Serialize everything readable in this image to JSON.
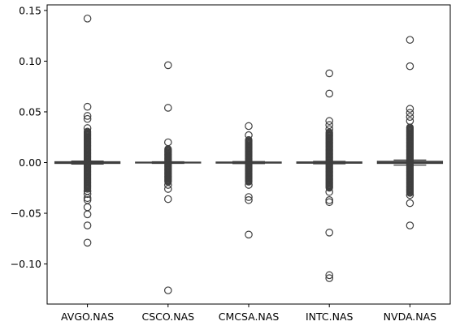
{
  "chart_data": {
    "type": "box",
    "categories": [
      "AVGO.NAS",
      "CSCO.NAS",
      "CMCSA.NAS",
      "INTC.NAS",
      "NVDA.NAS"
    ],
    "yticks": [
      0.15,
      0.1,
      0.05,
      0.0,
      -0.05,
      -0.1
    ],
    "ytick_labels": [
      "0.15",
      "0.10",
      "0.05",
      "0.00",
      "−0.05",
      "−0.10"
    ],
    "ylim": [
      -0.1395,
      0.1555
    ],
    "grid": false,
    "box_fill_color": "#ffffff",
    "stroke_color": "#3f3f3f",
    "series": [
      {
        "category": "AVGO.NAS",
        "box": {
          "q1": -0.0008,
          "median": 0.0,
          "q3": 0.0008,
          "whisker_low": -0.0015,
          "whisker_high": 0.0015
        },
        "dense_outlier_range": [
          -0.026,
          0.031
        ],
        "outliers": [
          0.142,
          0.055,
          0.046,
          0.043,
          0.034,
          -0.028,
          -0.031,
          -0.035,
          -0.037,
          -0.044,
          -0.051,
          -0.062,
          -0.079
        ]
      },
      {
        "category": "CSCO.NAS",
        "box": {
          "q1": -0.0004,
          "median": 0.0,
          "q3": 0.0004,
          "whisker_low": -0.0008,
          "whisker_high": 0.0008
        },
        "dense_outlier_range": [
          -0.019,
          0.014
        ],
        "outliers": [
          0.096,
          0.054,
          0.02,
          -0.022,
          -0.026,
          -0.036,
          -0.126
        ]
      },
      {
        "category": "CMCSA.NAS",
        "box": {
          "q1": -0.0005,
          "median": 0.0,
          "q3": 0.0005,
          "whisker_low": -0.001,
          "whisker_high": 0.001
        },
        "dense_outlier_range": [
          -0.019,
          0.023
        ],
        "outliers": [
          0.036,
          0.027,
          -0.022,
          -0.034,
          -0.037,
          -0.071
        ]
      },
      {
        "category": "INTC.NAS",
        "box": {
          "q1": -0.0006,
          "median": 0.0,
          "q3": 0.0006,
          "whisker_low": -0.0012,
          "whisker_high": 0.0012
        },
        "dense_outlier_range": [
          -0.025,
          0.03
        ],
        "outliers": [
          0.088,
          0.068,
          0.041,
          0.037,
          0.033,
          -0.029,
          -0.037,
          -0.039,
          -0.069,
          -0.111,
          -0.114
        ]
      },
      {
        "category": "NVDA.NAS",
        "box": {
          "q1": -0.0008,
          "median": 0.0,
          "q3": 0.0012,
          "whisker_low": -0.0025,
          "whisker_high": 0.0025
        },
        "dense_outlier_range": [
          -0.03,
          0.035
        ],
        "outliers": [
          0.121,
          0.095,
          0.053,
          0.049,
          0.045,
          0.041,
          -0.032,
          -0.04,
          -0.062
        ]
      }
    ]
  }
}
